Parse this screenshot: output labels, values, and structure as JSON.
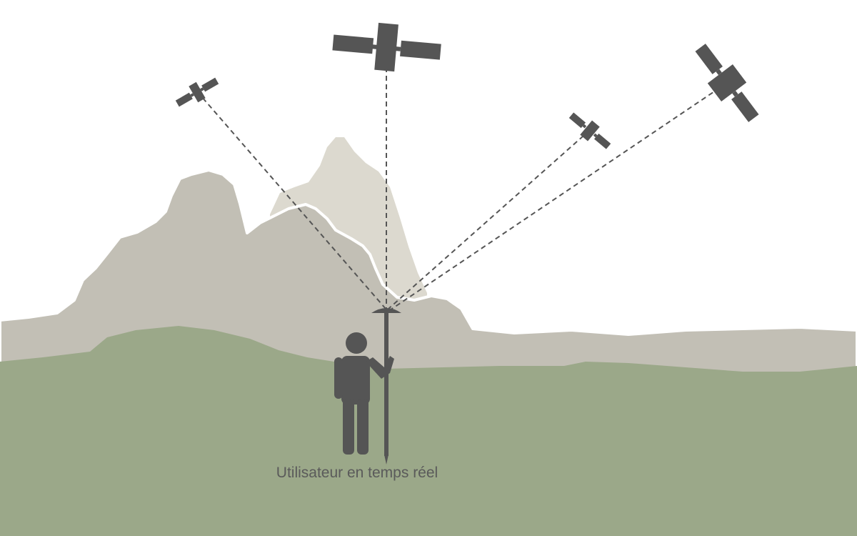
{
  "caption": "Utilisateur en temps réel",
  "colors": {
    "sky": "#ffffff",
    "mountain_far": "#dcd9cf",
    "mountain_near": "#c2bfb5",
    "ground": "#9ba889",
    "ink": "#5a5a5a",
    "signal_line": "#555555"
  },
  "icons": {
    "satellites": [
      "satellite-icon",
      "satellite-icon",
      "satellite-icon",
      "satellite-icon"
    ],
    "user": "surveyor-person-icon",
    "receiver": "gnss-antenna-icon"
  }
}
